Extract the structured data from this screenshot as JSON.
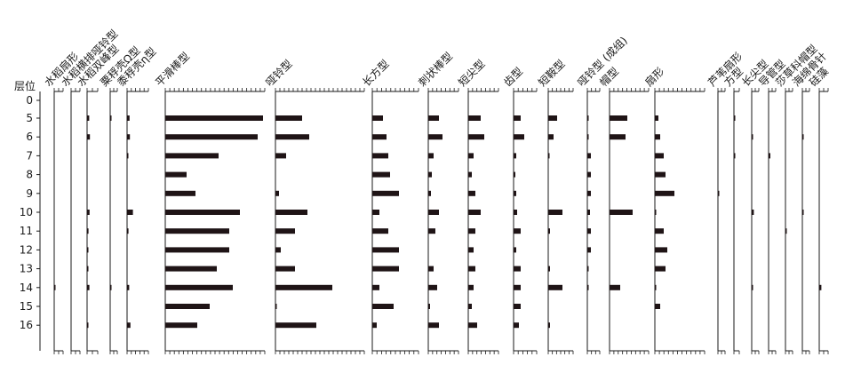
{
  "chart_data": {
    "type": "bar",
    "orientation": "horizontal",
    "panel_type": "phytolith percentage diagram",
    "y_axis_label": "层位",
    "y_ticks": [
      0,
      5,
      6,
      7,
      8,
      9,
      10,
      11,
      12,
      13,
      14,
      15,
      16
    ],
    "levels": [
      5,
      6,
      7,
      8,
      9,
      10,
      11,
      12,
      13,
      14,
      15,
      16
    ],
    "series": [
      {
        "name": "水稻扇形",
        "values": [
          0,
          0,
          0,
          0,
          0,
          0,
          0,
          0,
          0,
          0.3,
          0,
          0
        ]
      },
      {
        "name": "水稻横排哑铃型",
        "values": [
          0,
          0,
          0,
          0,
          0,
          0,
          0,
          0,
          0,
          0,
          0,
          0
        ]
      },
      {
        "name": "水稻双峰型",
        "values": [
          1.2,
          1.6,
          0,
          0,
          0,
          1.4,
          0.8,
          0.3,
          0.3,
          1.3,
          0,
          0.2
        ]
      },
      {
        "name": "粟稃壳Ω型",
        "values": [
          0.3,
          0,
          0,
          0,
          0,
          0,
          0,
          0,
          0,
          0.3,
          0,
          0
        ]
      },
      {
        "name": "黍稃壳η型",
        "values": [
          1.4,
          1.6,
          0.4,
          0,
          0,
          3.3,
          0.8,
          0,
          0,
          1.2,
          0,
          1.9
        ]
      },
      {
        "name": "平滑棒型",
        "values": [
          55,
          52,
          30,
          12,
          17,
          42,
          36,
          36,
          29,
          38,
          25,
          18
        ]
      },
      {
        "name": "哑铃型",
        "values": [
          15,
          19,
          6,
          0,
          2,
          18,
          11,
          3,
          11,
          32,
          0.5,
          23
        ]
      },
      {
        "name": "长方型",
        "values": [
          6,
          8,
          9,
          10,
          15,
          4,
          9,
          15,
          15,
          4,
          12,
          2.5
        ]
      },
      {
        "name": "刺状棒型",
        "values": [
          6,
          8,
          3,
          2,
          1.5,
          6,
          4,
          0,
          3,
          5,
          1,
          6
        ]
      },
      {
        "name": "短尖型",
        "values": [
          7,
          9,
          3,
          2,
          4,
          7,
          4,
          3,
          4,
          3,
          2,
          5
        ]
      },
      {
        "name": "齿型",
        "values": [
          4,
          6,
          1.5,
          1,
          1.5,
          2,
          4,
          1.5,
          4,
          4,
          4,
          3
        ]
      },
      {
        "name": "短鞍型",
        "values": [
          5,
          3,
          0.3,
          0,
          0,
          8,
          1,
          0,
          1,
          8,
          0,
          1
        ]
      },
      {
        "name": "哑铃型 (成组)",
        "values": [
          0.3,
          0.3,
          2,
          2,
          2,
          1.5,
          2,
          2,
          0.5,
          0.5,
          0,
          0
        ]
      },
      {
        "name": "帽型",
        "values": [
          10,
          9,
          0,
          0,
          0,
          13,
          0,
          0,
          0,
          6,
          0,
          0
        ]
      },
      {
        "name": "扇形",
        "values": [
          2,
          3,
          5,
          6,
          11,
          0.5,
          5,
          7,
          6,
          0.3,
          3,
          0
        ]
      },
      {
        "name": "芦苇扇形",
        "values": [
          0,
          0,
          0,
          0,
          0.6,
          0,
          0,
          0,
          0,
          0,
          0,
          0
        ]
      },
      {
        "name": "方型",
        "values": [
          0.3,
          0,
          0.3,
          0,
          0,
          0,
          0,
          0,
          0,
          0,
          0,
          0
        ]
      },
      {
        "name": "长尖型",
        "values": [
          0,
          0.5,
          0,
          0,
          0,
          1.2,
          0,
          0,
          0,
          0.5,
          0,
          0
        ]
      },
      {
        "name": "导管型",
        "values": [
          0,
          0,
          1,
          0,
          0,
          0,
          0,
          0,
          0,
          0,
          0,
          0
        ]
      },
      {
        "name": "莎草科帽型",
        "values": [
          0,
          0,
          0,
          0,
          0,
          0,
          0.2,
          0,
          0,
          0,
          0,
          0
        ]
      },
      {
        "name": "海绵骨针",
        "values": [
          0,
          0.5,
          0,
          0,
          0,
          0.7,
          0,
          0,
          0,
          0,
          0,
          0
        ]
      },
      {
        "name": "硅藻",
        "values": [
          0,
          0,
          0,
          0,
          0,
          0,
          0,
          0,
          0,
          1.2,
          0,
          0
        ]
      }
    ],
    "grid": false,
    "legend": "none"
  }
}
